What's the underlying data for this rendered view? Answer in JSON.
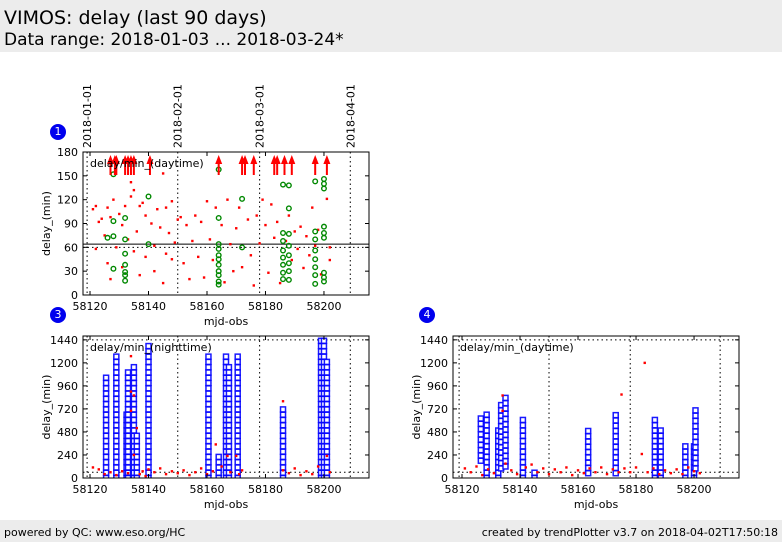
{
  "header": {
    "title": "VIMOS: delay (last 90 days)",
    "range": "Data range: 2018-01-03 ... 2018-03-24*"
  },
  "footer": {
    "left": "powered by QC: www.eso.org/HC",
    "right": "created by trendPlotter v3.7 on 2018-04-02T17:50:18"
  },
  "badges": [
    "1",
    "3",
    "4"
  ],
  "colors": {
    "red": "#ff0000",
    "green": "#008800",
    "blue": "#0000ff",
    "badge": "#0000ee"
  },
  "chart_data": [
    {
      "id": "p1",
      "type": "scatter",
      "label": "delay/min_(daytime)",
      "xlabel": "mjd-obs",
      "ylabel": "delay_(min)",
      "xlim": [
        58117.6,
        58215.4
      ],
      "ylim": [
        0,
        180
      ],
      "xticks": [
        58120,
        58140,
        58160,
        58180,
        58200
      ],
      "yticks": [
        0,
        30,
        60,
        90,
        120,
        150,
        180
      ],
      "date_ticks": [
        {
          "x": 58119,
          "label": "2018-01-01"
        },
        {
          "x": 58150,
          "label": "2018-02-01"
        },
        {
          "x": 58178,
          "label": "2018-03-01"
        },
        {
          "x": 58209,
          "label": "2018-04-01"
        }
      ],
      "hlines": [
        {
          "y": 64,
          "style": "solid"
        },
        {
          "y": 60,
          "style": "dotted"
        }
      ],
      "arrows_x": [
        58127,
        58128.5,
        58129,
        58132,
        58133,
        58134,
        58135,
        58140.5,
        58164,
        58172,
        58173,
        58176,
        58183,
        58184,
        58186.5,
        58189,
        58197,
        58201
      ],
      "red": [
        [
          58121,
          108
        ],
        [
          58122,
          112
        ],
        [
          58122,
          58
        ],
        [
          58123,
          92
        ],
        [
          58124,
          96
        ],
        [
          58125,
          75
        ],
        [
          58126,
          110
        ],
        [
          58126,
          40
        ],
        [
          58127,
          20
        ],
        [
          58127,
          98
        ],
        [
          58128,
          120
        ],
        [
          58129,
          60
        ],
        [
          58130,
          102
        ],
        [
          58131,
          88
        ],
        [
          58131,
          35
        ],
        [
          58132,
          112
        ],
        [
          58133,
          70
        ],
        [
          58134,
          142
        ],
        [
          58134,
          124
        ],
        [
          58135,
          132
        ],
        [
          58135,
          55
        ],
        [
          58136,
          80
        ],
        [
          58137,
          112
        ],
        [
          58137,
          25
        ],
        [
          58138,
          116
        ],
        [
          58139,
          100
        ],
        [
          58139,
          48
        ],
        [
          58141,
          90
        ],
        [
          58142,
          62
        ],
        [
          58142,
          30
        ],
        [
          58143,
          108
        ],
        [
          58144,
          85
        ],
        [
          58145,
          153
        ],
        [
          58145,
          15
        ],
        [
          58146,
          110
        ],
        [
          58146,
          52
        ],
        [
          58147,
          78
        ],
        [
          58148,
          118
        ],
        [
          58148,
          45
        ],
        [
          58149,
          66
        ],
        [
          58150,
          95
        ],
        [
          58151,
          98
        ],
        [
          58152,
          40
        ],
        [
          58153,
          88
        ],
        [
          58154,
          20
        ],
        [
          58155,
          68
        ],
        [
          58156,
          100
        ],
        [
          58157,
          48
        ],
        [
          58158,
          92
        ],
        [
          58159,
          22
        ],
        [
          58160,
          118
        ],
        [
          58161,
          70
        ],
        [
          58162,
          44
        ],
        [
          58163,
          110
        ],
        [
          58165,
          88
        ],
        [
          58166,
          16
        ],
        [
          58167,
          120
        ],
        [
          58168,
          64
        ],
        [
          58169,
          30
        ],
        [
          58170,
          84
        ],
        [
          58171,
          110
        ],
        [
          58172,
          35
        ],
        [
          58174,
          95
        ],
        [
          58175,
          50
        ],
        [
          58176,
          12
        ],
        [
          58177,
          100
        ],
        [
          58178,
          65
        ],
        [
          58179,
          120
        ],
        [
          58180,
          88
        ],
        [
          58181,
          28
        ],
        [
          58182,
          114
        ],
        [
          58183,
          72
        ],
        [
          58184,
          92
        ],
        [
          58185,
          15
        ],
        [
          58187,
          68
        ],
        [
          58188,
          100
        ],
        [
          58189,
          44
        ],
        [
          58190,
          80
        ],
        [
          58191,
          58
        ],
        [
          58192,
          86
        ],
        [
          58193,
          34
        ],
        [
          58194,
          74
        ],
        [
          58195,
          50
        ],
        [
          58196,
          110
        ],
        [
          58197,
          62
        ],
        [
          58198,
          82
        ],
        [
          58199,
          26
        ],
        [
          58201,
          121
        ],
        [
          58202,
          60
        ],
        [
          58202,
          44
        ]
      ],
      "green": [
        [
          58126,
          72
        ],
        [
          58128,
          74
        ],
        [
          58128,
          93
        ],
        [
          58128,
          33
        ],
        [
          58128,
          152
        ],
        [
          58132,
          97
        ],
        [
          58132,
          70
        ],
        [
          58132,
          52
        ],
        [
          58132,
          38
        ],
        [
          58132,
          29
        ],
        [
          58132,
          25
        ],
        [
          58132,
          18
        ],
        [
          58140,
          124
        ],
        [
          58140,
          64
        ],
        [
          58164,
          97
        ],
        [
          58164,
          64
        ],
        [
          58164,
          58
        ],
        [
          58164,
          50
        ],
        [
          58164,
          45
        ],
        [
          58164,
          38
        ],
        [
          58164,
          30
        ],
        [
          58164,
          25
        ],
        [
          58164,
          17
        ],
        [
          58164,
          13
        ],
        [
          58164,
          158
        ],
        [
          58172,
          121
        ],
        [
          58172,
          60
        ],
        [
          58186,
          139
        ],
        [
          58186,
          78
        ],
        [
          58186,
          68
        ],
        [
          58186,
          56
        ],
        [
          58186,
          47
        ],
        [
          58186,
          38
        ],
        [
          58186,
          28
        ],
        [
          58186,
          20
        ],
        [
          58188,
          138
        ],
        [
          58188,
          109
        ],
        [
          58188,
          77
        ],
        [
          58188,
          62
        ],
        [
          58188,
          50
        ],
        [
          58188,
          40
        ],
        [
          58188,
          30
        ],
        [
          58188,
          19
        ],
        [
          58197,
          143
        ],
        [
          58197,
          80
        ],
        [
          58197,
          70
        ],
        [
          58197,
          56
        ],
        [
          58197,
          45
        ],
        [
          58197,
          35
        ],
        [
          58197,
          25
        ],
        [
          58197,
          14
        ],
        [
          58200,
          146
        ],
        [
          58200,
          140
        ],
        [
          58200,
          134
        ],
        [
          58200,
          86
        ],
        [
          58200,
          78
        ],
        [
          58200,
          72
        ],
        [
          58200,
          28
        ],
        [
          58200,
          22
        ],
        [
          58200,
          17
        ]
      ]
    },
    {
      "id": "p3",
      "type": "scatter",
      "label": "delay/min_(nighttime)",
      "xlabel": "mjd-obs",
      "ylabel": "delay_(min)",
      "xlim": [
        58117.6,
        58215.4
      ],
      "ylim": [
        0,
        1480
      ],
      "xticks": [
        58120,
        58140,
        58160,
        58180,
        58200
      ],
      "yticks": [
        0,
        240,
        480,
        720,
        960,
        1200,
        1440
      ],
      "vlines": [
        58119,
        58150,
        58178,
        58209
      ],
      "hlines": [
        {
          "y": 1440,
          "style": "dotted"
        },
        {
          "y": 60,
          "style": "dotted"
        }
      ],
      "blue_columns": [
        [
          58125.5,
          0,
          1060
        ],
        [
          58129,
          0,
          1270
        ],
        [
          58132.5,
          0,
          660
        ],
        [
          58133,
          0,
          1120
        ],
        [
          58135,
          0,
          1180
        ],
        [
          58136,
          0,
          450
        ],
        [
          58140,
          0,
          1420
        ],
        [
          58160.5,
          0,
          1290
        ],
        [
          58164,
          0,
          270
        ],
        [
          58166.5,
          0,
          1310
        ],
        [
          58167.5,
          0,
          1180
        ],
        [
          58170.5,
          0,
          1310
        ],
        [
          58186,
          0,
          740
        ],
        [
          58199,
          0,
          1440
        ],
        [
          58200,
          0,
          1440
        ],
        [
          58201,
          0,
          1220
        ]
      ],
      "red": [
        [
          58121,
          110
        ],
        [
          58123,
          90
        ],
        [
          58125,
          40
        ],
        [
          58127,
          60
        ],
        [
          58129,
          30
        ],
        [
          58131,
          70
        ],
        [
          58133,
          50
        ],
        [
          58134,
          1270
        ],
        [
          58134,
          900
        ],
        [
          58134,
          700
        ],
        [
          58135,
          860
        ],
        [
          58136,
          520
        ],
        [
          58135,
          240
        ],
        [
          58137,
          40
        ],
        [
          58138,
          70
        ],
        [
          58139,
          20
        ],
        [
          58140,
          90
        ],
        [
          58142,
          60
        ],
        [
          58144,
          100
        ],
        [
          58146,
          40
        ],
        [
          58148,
          70
        ],
        [
          58150,
          50
        ],
        [
          58152,
          80
        ],
        [
          58154,
          30
        ],
        [
          58156,
          60
        ],
        [
          58158,
          100
        ],
        [
          58160,
          40
        ],
        [
          58162,
          70
        ],
        [
          58163,
          350
        ],
        [
          58165,
          120
        ],
        [
          58167,
          230
        ],
        [
          58168,
          60
        ],
        [
          58170,
          230
        ],
        [
          58171,
          40
        ],
        [
          58172,
          80
        ],
        [
          58186,
          800
        ],
        [
          58186,
          80
        ],
        [
          58188,
          50
        ],
        [
          58190,
          100
        ],
        [
          58192,
          30
        ],
        [
          58194,
          70
        ],
        [
          58196,
          40
        ],
        [
          58198,
          120
        ],
        [
          58201,
          230
        ],
        [
          58202,
          60
        ]
      ]
    },
    {
      "id": "p4",
      "type": "scatter",
      "label": "delay/min_(daytime)",
      "xlabel": "mjd-obs",
      "ylabel": "delay_(min)",
      "xlim": [
        58116.9,
        58215.5
      ],
      "ylim": [
        0,
        1480
      ],
      "xticks": [
        58120,
        58140,
        58160,
        58180,
        58200
      ],
      "yticks": [
        0,
        240,
        480,
        720,
        960,
        1200,
        1440
      ],
      "vlines": [
        58119,
        58150,
        58178,
        58209
      ],
      "hlines": [
        {
          "y": 1440,
          "style": "dotted"
        },
        {
          "y": 60,
          "style": "dotted"
        }
      ],
      "blue_columns": [
        [
          58126.5,
          180,
          640
        ],
        [
          58128.5,
          0,
          700
        ],
        [
          58132.5,
          0,
          520
        ],
        [
          58133.5,
          100,
          780
        ],
        [
          58135,
          120,
          880
        ],
        [
          58141,
          0,
          610
        ],
        [
          58145,
          0,
          100
        ],
        [
          58163.5,
          50,
          520
        ],
        [
          58173,
          50,
          680
        ],
        [
          58186.5,
          0,
          640
        ],
        [
          58188.5,
          0,
          510
        ],
        [
          58197,
          0,
          380
        ],
        [
          58200,
          0,
          340
        ],
        [
          58200.5,
          100,
          750
        ]
      ],
      "red": [
        [
          58121,
          100
        ],
        [
          58123,
          60
        ],
        [
          58125,
          120
        ],
        [
          58127,
          30
        ],
        [
          58129,
          90
        ],
        [
          58131,
          50
        ],
        [
          58134,
          860
        ],
        [
          58134,
          700
        ],
        [
          58135,
          150
        ],
        [
          58137,
          80
        ],
        [
          58139,
          40
        ],
        [
          58142,
          110
        ],
        [
          58144,
          140
        ],
        [
          58146,
          60
        ],
        [
          58148,
          100
        ],
        [
          58150,
          40
        ],
        [
          58152,
          90
        ],
        [
          58154,
          60
        ],
        [
          58156,
          110
        ],
        [
          58158,
          30
        ],
        [
          58160,
          80
        ],
        [
          58162,
          50
        ],
        [
          58164,
          100
        ],
        [
          58166,
          60
        ],
        [
          58168,
          110
        ],
        [
          58170,
          40
        ],
        [
          58172,
          90
        ],
        [
          58174,
          60
        ],
        [
          58175,
          870
        ],
        [
          58176,
          100
        ],
        [
          58178,
          60
        ],
        [
          58180,
          110
        ],
        [
          58182,
          250
        ],
        [
          58183,
          1200
        ],
        [
          58184,
          60
        ],
        [
          58186,
          100
        ],
        [
          58188,
          40
        ],
        [
          58190,
          80
        ],
        [
          58192,
          50
        ],
        [
          58194,
          90
        ],
        [
          58196,
          40
        ],
        [
          58198,
          110
        ],
        [
          58200,
          70
        ],
        [
          58202,
          50
        ]
      ]
    }
  ]
}
